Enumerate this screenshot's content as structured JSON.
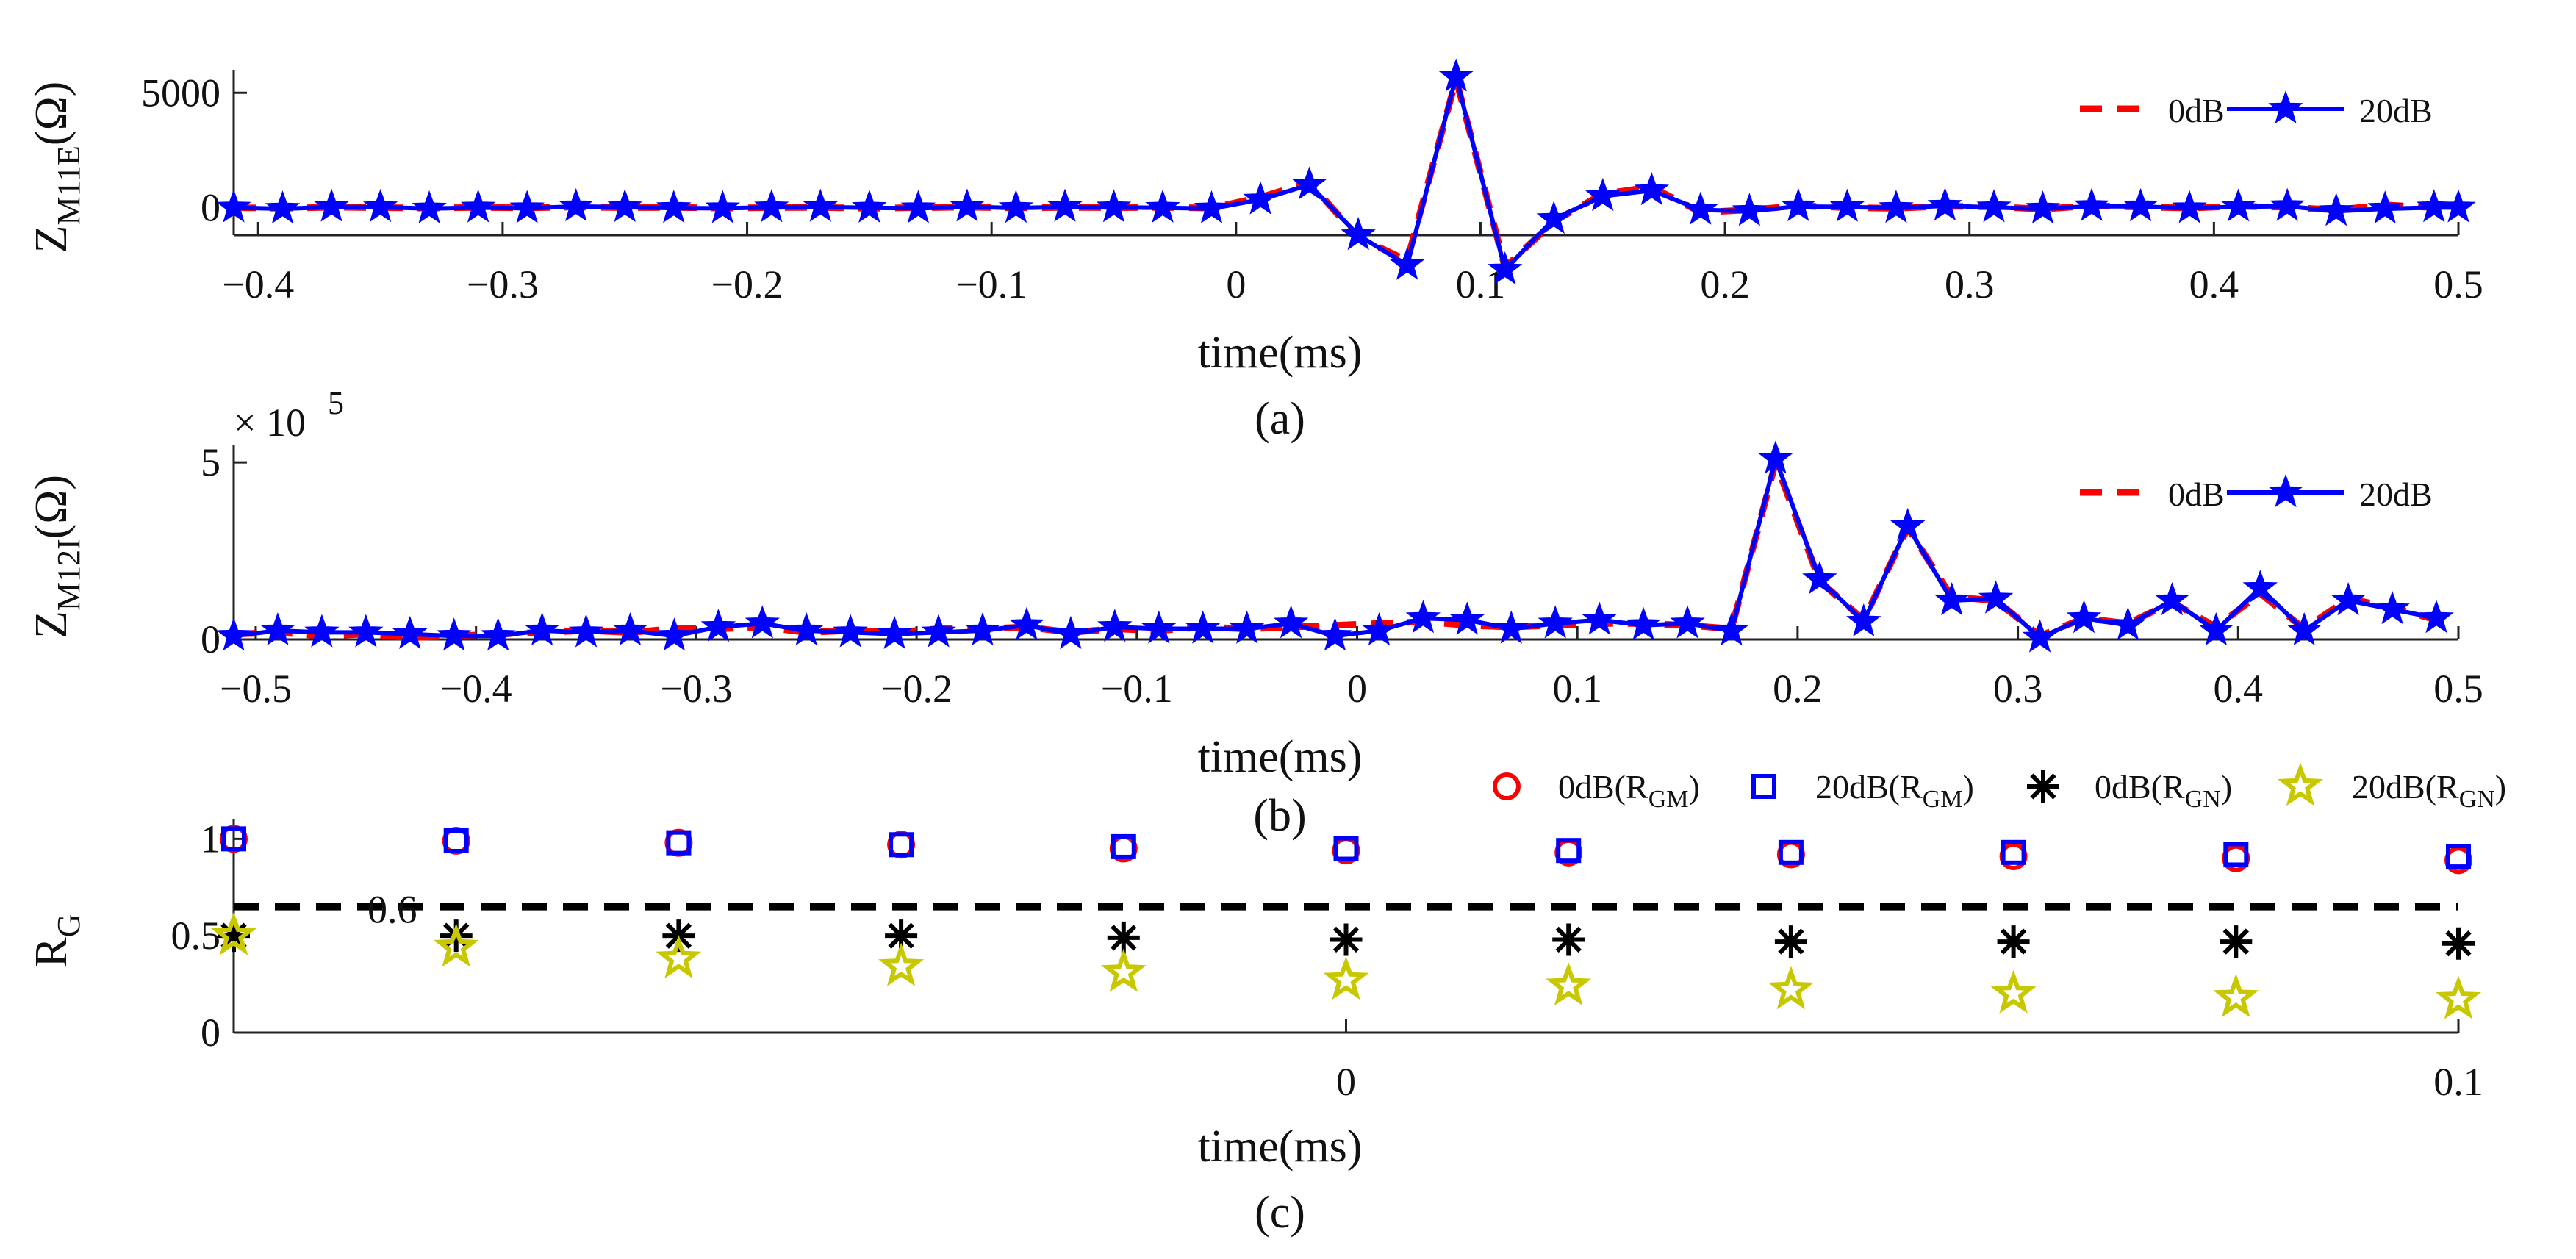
{
  "chart_data": [
    {
      "id": "a",
      "type": "line",
      "caption": "(a)",
      "xlabel": "time(ms)",
      "ylabel": {
        "main": "Z",
        "sub": "M11E",
        "unit": "(Ω)"
      },
      "xlim": [
        -0.41,
        0.5
      ],
      "ylim": [
        -1200,
        6000
      ],
      "xticks": [
        "−0.4",
        "−0.3",
        "−0.2",
        "−0.1",
        "0",
        "0.1",
        "0.2",
        "0.3",
        "0.4",
        "0.5"
      ],
      "xtick_values": [
        -0.4,
        -0.3,
        -0.2,
        -0.1,
        0,
        0.1,
        0.2,
        0.3,
        0.4,
        0.5
      ],
      "yticks": [
        "0",
        "5000"
      ],
      "ytick_values": [
        0,
        5000
      ],
      "x": [
        -0.41,
        -0.39,
        -0.37,
        -0.35,
        -0.33,
        -0.31,
        -0.29,
        -0.27,
        -0.25,
        -0.23,
        -0.21,
        -0.19,
        -0.17,
        -0.15,
        -0.13,
        -0.11,
        -0.09,
        -0.07,
        -0.05,
        -0.03,
        -0.01,
        0.01,
        0.03,
        0.05,
        0.07,
        0.09,
        0.11,
        0.13,
        0.15,
        0.17,
        0.19,
        0.21,
        0.23,
        0.25,
        0.27,
        0.29,
        0.31,
        0.33,
        0.35,
        0.37,
        0.39,
        0.41,
        0.43,
        0.45,
        0.47,
        0.49,
        0.5
      ],
      "series": [
        {
          "name": "0dB",
          "color": "#ff0000",
          "style": "dashed",
          "values": [
            0,
            -30,
            20,
            0,
            -20,
            10,
            -10,
            30,
            0,
            10,
            -20,
            0,
            10,
            -30,
            0,
            20,
            -10,
            10,
            0,
            10,
            -20,
            450,
            1100,
            -1300,
            -2300,
            5600,
            -2600,
            -600,
            600,
            900,
            -200,
            -100,
            80,
            0,
            -30,
            60,
            40,
            -60,
            80,
            30,
            -20,
            60,
            20,
            -100,
            120,
            0,
            0
          ]
        },
        {
          "name": "20dB",
          "color": "#0000ff",
          "style": "solid",
          "marker": "star",
          "values": [
            0,
            -50,
            30,
            20,
            -40,
            0,
            -30,
            50,
            20,
            -20,
            -30,
            10,
            30,
            -10,
            -30,
            40,
            -20,
            30,
            10,
            -10,
            -40,
            350,
            1000,
            -1200,
            -2500,
            5700,
            -2700,
            -500,
            500,
            750,
            -100,
            -150,
            50,
            30,
            -20,
            80,
            10,
            -50,
            60,
            50,
            -30,
            40,
            60,
            -150,
            -50,
            10,
            0
          ]
        }
      ],
      "legend": "top-right"
    },
    {
      "id": "b",
      "type": "line",
      "caption": "(b)",
      "xlabel": "time(ms)",
      "ylabel": {
        "main": "Z",
        "sub": "M12I",
        "unit": "(Ω)"
      },
      "exponent_label": "× 10",
      "exponent": "5",
      "xlim": [
        -0.51,
        0.5
      ],
      "ylim": [
        0,
        5.5
      ],
      "xticks": [
        "−0.5",
        "−0.4",
        "−0.3",
        "−0.2",
        "−0.1",
        "0",
        "0.1",
        "0.2",
        "0.3",
        "0.4",
        "0.5"
      ],
      "xtick_values": [
        -0.5,
        -0.4,
        -0.3,
        -0.2,
        -0.1,
        0,
        0.1,
        0.2,
        0.3,
        0.4,
        0.5
      ],
      "yticks": [
        "0",
        "5"
      ],
      "ytick_values": [
        0,
        5
      ],
      "x": [
        -0.51,
        -0.49,
        -0.47,
        -0.45,
        -0.43,
        -0.41,
        -0.39,
        -0.37,
        -0.35,
        -0.33,
        -0.31,
        -0.29,
        -0.27,
        -0.25,
        -0.23,
        -0.21,
        -0.19,
        -0.17,
        -0.15,
        -0.13,
        -0.11,
        -0.09,
        -0.07,
        -0.05,
        -0.03,
        -0.01,
        0.01,
        0.03,
        0.05,
        0.07,
        0.09,
        0.11,
        0.13,
        0.15,
        0.17,
        0.19,
        0.21,
        0.23,
        0.25,
        0.27,
        0.29,
        0.31,
        0.33,
        0.35,
        0.37,
        0.39,
        0.41,
        0.43,
        0.45,
        0.47,
        0.49
      ],
      "series": [
        {
          "name": "0dB",
          "color": "#ff0000",
          "style": "dashed",
          "values": [
            0.15,
            0.2,
            0.1,
            0.15,
            0.05,
            0.1,
            0.15,
            0.2,
            0.25,
            0.2,
            0.3,
            0.3,
            0.35,
            0.2,
            0.25,
            0.2,
            0.3,
            0.3,
            0.35,
            0.2,
            0.3,
            0.25,
            0.35,
            0.3,
            0.35,
            0.4,
            0.45,
            0.5,
            0.4,
            0.35,
            0.4,
            0.45,
            0.45,
            0.4,
            0.3,
            5.0,
            1.65,
            0.55,
            3.15,
            1.2,
            1.1,
            0.1,
            0.6,
            0.45,
            1.05,
            0.35,
            1.3,
            0.3,
            1.15,
            0.9,
            0.55
          ]
        },
        {
          "name": "20dB",
          "color": "#0000ff",
          "style": "solid",
          "marker": "star",
          "values": [
            0.1,
            0.25,
            0.2,
            0.2,
            0.15,
            0.1,
            0.1,
            0.25,
            0.2,
            0.25,
            0.1,
            0.35,
            0.45,
            0.25,
            0.2,
            0.15,
            0.2,
            0.25,
            0.4,
            0.15,
            0.35,
            0.3,
            0.3,
            0.3,
            0.45,
            0.1,
            0.25,
            0.6,
            0.55,
            0.3,
            0.45,
            0.55,
            0.4,
            0.45,
            0.25,
            5.1,
            1.7,
            0.5,
            3.2,
            1.1,
            1.15,
            0.05,
            0.6,
            0.4,
            1.1,
            0.25,
            1.45,
            0.25,
            1.1,
            0.85,
            0.6
          ]
        }
      ],
      "legend": "top-right"
    },
    {
      "id": "c",
      "type": "scatter",
      "caption": "(c)",
      "xlabel": "time(ms)",
      "ylabel": {
        "main": "R",
        "sub": "G",
        "unit": ""
      },
      "xlim": [
        -0.1,
        0.1
      ],
      "ylim": [
        0,
        1.1
      ],
      "xticks": [
        "0",
        "0.1"
      ],
      "xtick_values": [
        0,
        0.1
      ],
      "yticks": [
        "0",
        "0.5",
        "1"
      ],
      "ytick_values": [
        0,
        0.5,
        1
      ],
      "threshold": {
        "value": 0.65,
        "label": "0.6",
        "color": "#000000",
        "style": "dashed"
      },
      "x": [
        -0.1,
        -0.08,
        -0.06,
        -0.04,
        -0.02,
        0,
        0.02,
        0.04,
        0.06,
        0.08,
        0.1
      ],
      "series": [
        {
          "name": "0dB(R_GM)",
          "legend_main": "0dB(R",
          "legend_sub": "GM",
          "legend_end": ")",
          "color": "#ff0000",
          "marker": "circle",
          "values": [
            1.0,
            0.99,
            0.98,
            0.97,
            0.95,
            0.94,
            0.93,
            0.92,
            0.91,
            0.9,
            0.89
          ]
        },
        {
          "name": "20dB(R_GM)",
          "legend_main": "20dB(R",
          "legend_sub": "GM",
          "legend_end": ")",
          "color": "#0000ff",
          "marker": "square",
          "values": [
            1.0,
            0.99,
            0.98,
            0.97,
            0.96,
            0.95,
            0.94,
            0.93,
            0.93,
            0.92,
            0.91
          ]
        },
        {
          "name": "0dB(R_GN)",
          "legend_main": "0dB(R",
          "legend_sub": "GN",
          "legend_end": ")",
          "color": "#000000",
          "marker": "asterisk",
          "values": [
            0.5,
            0.5,
            0.5,
            0.5,
            0.49,
            0.48,
            0.48,
            0.47,
            0.47,
            0.47,
            0.46
          ]
        },
        {
          "name": "20dB(R_GN)",
          "legend_main": "20dB(R",
          "legend_sub": "GN",
          "legend_end": ")",
          "color": "#c8c800",
          "marker": "star-open",
          "values": [
            0.5,
            0.44,
            0.38,
            0.34,
            0.31,
            0.27,
            0.24,
            0.22,
            0.2,
            0.18,
            0.17
          ]
        }
      ],
      "legend": "top, outside"
    }
  ]
}
